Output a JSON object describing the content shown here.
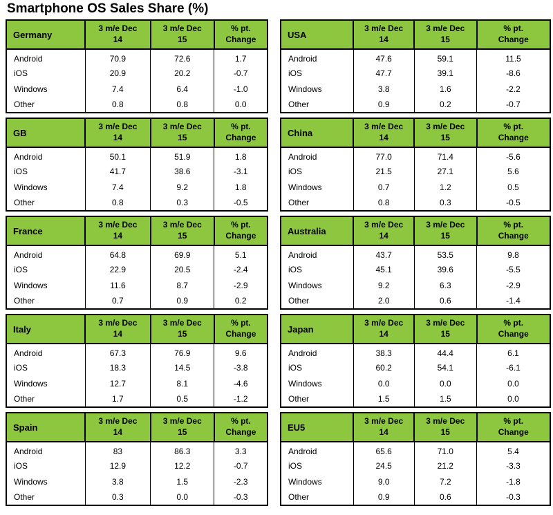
{
  "title": "Smartphone OS Sales Share (%)",
  "colors": {
    "header_green": "#8dc63f",
    "border_black": "#000000",
    "text": "#000000",
    "page_background": "#ffffff"
  },
  "chart_data": {
    "type": "table",
    "title": "Smartphone OS Sales Share (%)",
    "columns": [
      "3 m/e Dec\n14",
      "3 m/e Dec\n15",
      "% pt.\nChange"
    ],
    "row_labels": [
      "Android",
      "iOS",
      "Windows",
      "Other"
    ],
    "layout": "two-column grid of ten tables; left column top-to-bottom: Germany, GB, France, Italy, Spain; right column: USA, China, Australia, Japan, EU5",
    "tables": [
      {
        "country": "Germany",
        "values": [
          [
            "70.9",
            "72.6",
            "1.7"
          ],
          [
            "20.9",
            "20.2",
            "-0.7"
          ],
          [
            "7.4",
            "6.4",
            "-1.0"
          ],
          [
            "0.8",
            "0.8",
            "0.0"
          ]
        ]
      },
      {
        "country": "USA",
        "values": [
          [
            "47.6",
            "59.1",
            "11.5"
          ],
          [
            "47.7",
            "39.1",
            "-8.6"
          ],
          [
            "3.8",
            "1.6",
            "-2.2"
          ],
          [
            "0.9",
            "0.2",
            "-0.7"
          ]
        ]
      },
      {
        "country": "GB",
        "values": [
          [
            "50.1",
            "51.9",
            "1.8"
          ],
          [
            "41.7",
            "38.6",
            "-3.1"
          ],
          [
            "7.4",
            "9.2",
            "1.8"
          ],
          [
            "0.8",
            "0.3",
            "-0.5"
          ]
        ]
      },
      {
        "country": "China",
        "values": [
          [
            "77.0",
            "71.4",
            "-5.6"
          ],
          [
            "21.5",
            "27.1",
            "5.6"
          ],
          [
            "0.7",
            "1.2",
            "0.5"
          ],
          [
            "0.8",
            "0.3",
            "-0.5"
          ]
        ]
      },
      {
        "country": "France",
        "values": [
          [
            "64.8",
            "69.9",
            "5.1"
          ],
          [
            "22.9",
            "20.5",
            "-2.4"
          ],
          [
            "11.6",
            "8.7",
            "-2.9"
          ],
          [
            "0.7",
            "0.9",
            "0.2"
          ]
        ]
      },
      {
        "country": "Australia",
        "values": [
          [
            "43.7",
            "53.5",
            "9.8"
          ],
          [
            "45.1",
            "39.6",
            "-5.5"
          ],
          [
            "9.2",
            "6.3",
            "-2.9"
          ],
          [
            "2.0",
            "0.6",
            "-1.4"
          ]
        ]
      },
      {
        "country": "Italy",
        "values": [
          [
            "67.3",
            "76.9",
            "9.6"
          ],
          [
            "18.3",
            "14.5",
            "-3.8"
          ],
          [
            "12.7",
            "8.1",
            "-4.6"
          ],
          [
            "1.7",
            "0.5",
            "-1.2"
          ]
        ]
      },
      {
        "country": "Japan",
        "values": [
          [
            "38.3",
            "44.4",
            "6.1"
          ],
          [
            "60.2",
            "54.1",
            "-6.1"
          ],
          [
            "0.0",
            "0.0",
            "0.0"
          ],
          [
            "1.5",
            "1.5",
            "0.0"
          ]
        ]
      },
      {
        "country": "Spain",
        "values": [
          [
            "83",
            "86.3",
            "3.3"
          ],
          [
            "12.9",
            "12.2",
            "-0.7"
          ],
          [
            "3.8",
            "1.5",
            "-2.3"
          ],
          [
            "0.3",
            "0.0",
            "-0.3"
          ]
        ]
      },
      {
        "country": "EU5",
        "values": [
          [
            "65.6",
            "71.0",
            "5.4"
          ],
          [
            "24.5",
            "21.2",
            "-3.3"
          ],
          [
            "9.0",
            "7.2",
            "-1.8"
          ],
          [
            "0.9",
            "0.6",
            "-0.3"
          ]
        ]
      }
    ]
  }
}
